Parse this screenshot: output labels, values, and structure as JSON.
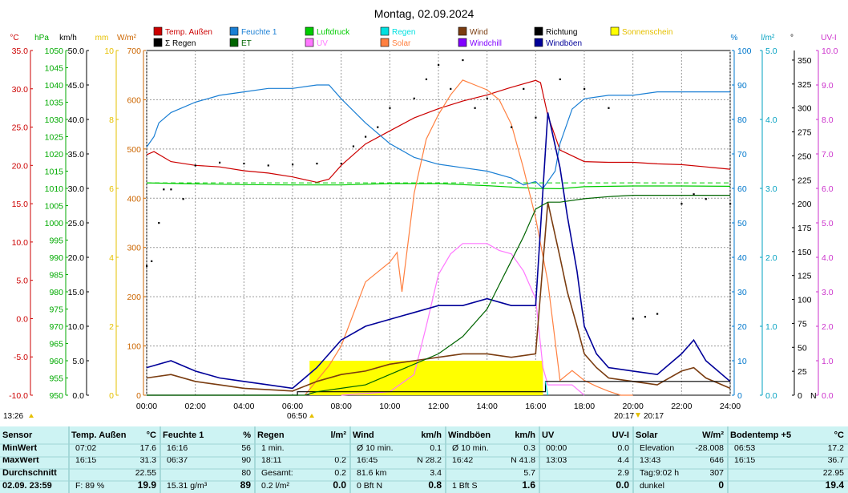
{
  "title": "Montag, 02.09.2024",
  "chart_data": {
    "type": "line",
    "title": "Montag, 02.09.2024",
    "x_ticks": [
      "00:00",
      "02:00",
      "04:00",
      "06:00",
      "08:00",
      "10:00",
      "12:00",
      "14:00",
      "16:00",
      "18:00",
      "20:00",
      "22:00",
      "24:00"
    ],
    "xlim_hours": [
      0,
      24
    ],
    "axes": [
      {
        "unit": "°C",
        "color": "#cc0000",
        "min": -10,
        "max": 35,
        "step": 5,
        "decimals": 1
      },
      {
        "unit": "hPa",
        "color": "#00aa00",
        "min": 950,
        "max": 1050,
        "step": 5,
        "decimals": 0
      },
      {
        "unit": "km/h",
        "color": "#000000",
        "min": 0,
        "max": 50,
        "step": 5,
        "decimals": 1
      },
      {
        "unit": "mm",
        "color": "#e6c000",
        "min": 0,
        "max": 10,
        "step": 2,
        "decimals": 0
      },
      {
        "unit": "W/m²",
        "color": "#cc6600",
        "min": 0,
        "max": 700,
        "step": 100,
        "decimals": 0
      },
      {
        "unit": "%",
        "color": "#0077cc",
        "min": 0,
        "max": 100,
        "step": 10,
        "decimals": 0
      },
      {
        "unit": "l/m²",
        "color": "#00a0c0",
        "min": 0,
        "max": 5,
        "step": 1,
        "decimals": 1
      },
      {
        "unit": "°",
        "color": "#000000",
        "min": 0,
        "max": 360,
        "step": 25,
        "decimals": 0
      },
      {
        "unit": "UV-I",
        "color": "#cc33cc",
        "min": 0,
        "max": 10,
        "step": 1,
        "decimals": 1
      }
    ],
    "legend": [
      {
        "label": "Temp. Außen",
        "color": "#cc0000"
      },
      {
        "label": "Feuchte 1",
        "color": "#1a7fd4"
      },
      {
        "label": "Luftdruck",
        "color": "#00cc00"
      },
      {
        "label": "Regen",
        "color": "#00e0e0"
      },
      {
        "label": "Wind",
        "color": "#7a3c10"
      },
      {
        "label": "Richtung",
        "color": "#000000"
      },
      {
        "label": "Sonnenschein",
        "color": "#ffff00"
      },
      {
        "label": "Σ Regen",
        "color": "#000000"
      },
      {
        "label": "ET",
        "color": "#006400"
      },
      {
        "label": "UV",
        "color": "#ff77ff"
      },
      {
        "label": "Solar",
        "color": "#ff8040"
      },
      {
        "label": "Windchill",
        "color": "#8000ff"
      },
      {
        "label": "Windböen",
        "color": "#000099"
      }
    ],
    "series": [
      {
        "name": "Temp. Außen",
        "axis": "°C",
        "x": [
          0,
          0.3,
          1,
          2,
          3,
          4,
          5,
          6,
          7,
          7.5,
          8,
          9,
          10,
          11,
          12,
          13,
          14,
          15,
          16,
          16.2,
          16.5,
          17,
          18,
          19,
          20,
          21,
          22,
          23,
          24
        ],
        "values": [
          21.4,
          21.8,
          20.5,
          20,
          19.8,
          19.3,
          19,
          18.5,
          17.8,
          18.2,
          20,
          22.8,
          24.5,
          26.2,
          27.4,
          28.4,
          29.2,
          30.2,
          31.1,
          30.8,
          26.5,
          22,
          20.5,
          20.4,
          20.4,
          20.2,
          20.1,
          19.8,
          19.5
        ]
      },
      {
        "name": "Feuchte 1",
        "axis": "%",
        "x": [
          0,
          0.3,
          0.5,
          1,
          2,
          3,
          4,
          5,
          6,
          7,
          7.5,
          8,
          9,
          10,
          11,
          12,
          13,
          14,
          15,
          15.5,
          16,
          16.3,
          16.8,
          17,
          17.5,
          18,
          19,
          20,
          21,
          22,
          23,
          24
        ],
        "values": [
          72,
          75,
          79,
          82,
          85,
          87,
          88,
          89,
          89,
          90,
          90,
          86,
          79,
          73,
          69,
          67,
          66,
          65,
          63,
          61,
          62,
          60,
          65,
          73,
          83,
          86,
          87,
          87,
          88,
          88,
          88,
          88
        ]
      },
      {
        "name": "Luftdruck",
        "axis": "hPa",
        "x": [
          0,
          2,
          4,
          6,
          8,
          10,
          12,
          14,
          16,
          17,
          18,
          20,
          22,
          24
        ],
        "values": [
          1011.6,
          1011.3,
          1011.1,
          1011.0,
          1011.0,
          1011.4,
          1011.4,
          1010.8,
          1010.0,
          1009.9,
          1010.5,
          1010.7,
          1010.7,
          1010.6
        ]
      },
      {
        "name": "Solar",
        "axis": "W/m²",
        "x": [
          6.5,
          7,
          7.5,
          8,
          9,
          10,
          10.3,
          10.5,
          11,
          11.5,
          12,
          12.5,
          13,
          13.5,
          14,
          14.5,
          15,
          15.5,
          16,
          16.5,
          17,
          17.5,
          18,
          18.5,
          19,
          19.5,
          20
        ],
        "values": [
          0,
          30,
          60,
          100,
          230,
          270,
          290,
          210,
          410,
          520,
          570,
          610,
          640,
          630,
          620,
          600,
          550,
          460,
          360,
          230,
          30,
          50,
          30,
          18,
          8,
          0,
          0
        ]
      },
      {
        "name": "UV",
        "axis": "UV-I",
        "x": [
          8,
          10,
          11,
          11.5,
          12,
          12.5,
          13,
          13.5,
          14,
          14.5,
          15,
          15.5,
          16,
          16.3,
          16.5,
          17,
          17.5,
          18
        ],
        "values": [
          0,
          0.1,
          0.6,
          2,
          3.5,
          4.1,
          4.4,
          4.4,
          4.4,
          4.2,
          4.1,
          3.6,
          2.8,
          0.8,
          0.3,
          0.3,
          0.3,
          0
        ]
      },
      {
        "name": "Wind",
        "axis": "km/h",
        "x": [
          0,
          1,
          2,
          3,
          4,
          5,
          6,
          7,
          8,
          9,
          10,
          11,
          12,
          13,
          14,
          15,
          16,
          16.5,
          17,
          17.3,
          17.7,
          18,
          18.5,
          19,
          20,
          21,
          22,
          22.5,
          23,
          24
        ],
        "values": [
          2.5,
          3,
          2,
          1.5,
          1,
          0.8,
          0.6,
          2,
          3,
          3.5,
          4.5,
          5,
          5.5,
          6,
          6,
          5.5,
          6,
          28,
          20,
          15,
          10,
          6,
          4,
          2.5,
          2,
          1.5,
          3.5,
          4,
          2.5,
          1
        ]
      },
      {
        "name": "Windböen",
        "axis": "km/h",
        "x": [
          0,
          1,
          2,
          3,
          4,
          5,
          6,
          7,
          8,
          9,
          10,
          11,
          12,
          13,
          14,
          15,
          16,
          16.5,
          17,
          17.3,
          17.7,
          18,
          18.5,
          19,
          20,
          21,
          22,
          22.5,
          23,
          24
        ],
        "values": [
          4,
          5,
          3.5,
          2.5,
          2,
          1.5,
          1,
          4,
          8,
          10,
          11,
          12,
          13,
          13,
          14,
          13,
          13,
          41,
          33,
          26,
          18,
          10,
          6,
          4,
          3.5,
          3,
          6,
          8,
          5,
          2
        ]
      },
      {
        "name": "Σ Regen",
        "axis": "l/m²",
        "x": [
          0,
          6.2,
          6.2,
          16.4,
          16.4,
          24
        ],
        "values": [
          0,
          0,
          0.05,
          0.05,
          0.2,
          0.2
        ]
      },
      {
        "name": "ET",
        "axis": "l/m²",
        "x": [
          0,
          6.5,
          7,
          8,
          9,
          10,
          11,
          12,
          13,
          14,
          14.5,
          15,
          15.5,
          16,
          16.5,
          17,
          18,
          19,
          20,
          21,
          22,
          23,
          24
        ],
        "values": [
          0,
          0,
          0.05,
          0.1,
          0.15,
          0.3,
          0.45,
          0.6,
          0.85,
          1.25,
          1.6,
          1.95,
          2.3,
          2.7,
          2.8,
          2.8,
          2.85,
          2.88,
          2.9,
          2.9,
          2.9,
          2.9,
          2.9
        ]
      },
      {
        "name": "Regen",
        "axis": "l/m²",
        "x": [
          16.4,
          16.5
        ],
        "values": [
          0.2,
          0
        ]
      },
      {
        "name": "Richtung",
        "axis": "°",
        "type": "scatter",
        "x": [
          0,
          0.2,
          0.5,
          0.7,
          1,
          1.5,
          2,
          3,
          4,
          5,
          6,
          7,
          8,
          8.5,
          9,
          9.5,
          10,
          11,
          11.5,
          12,
          12.5,
          13,
          13.5,
          14,
          15,
          15.5,
          16,
          17,
          18,
          19,
          20,
          20.5,
          21,
          22,
          22.5,
          23,
          24
        ],
        "values": [
          135,
          140,
          180,
          215,
          215,
          205,
          240,
          243,
          242,
          240,
          241,
          242,
          242,
          260,
          270,
          280,
          300,
          310,
          330,
          345,
          320,
          350,
          300,
          310,
          280,
          320,
          290,
          330,
          320,
          300,
          80,
          82,
          85,
          200,
          210,
          205,
          200
        ]
      }
    ]
  },
  "statusbar": {
    "left_time": "13:26",
    "sunrise": "06:50",
    "sunset_a": "20:17",
    "sunset_b": "20:17"
  },
  "stats": {
    "columns": [
      {
        "header": [
          "Sensor"
        ],
        "rows": [
          [
            "MinWert"
          ],
          [
            "MaxWert"
          ],
          [
            "Durchschnitt"
          ],
          [
            "02.09.  23:59"
          ]
        ]
      },
      {
        "header": [
          "Temp. Außen",
          "°C"
        ],
        "rows": [
          [
            "07:02",
            "17.6"
          ],
          [
            "16:15",
            "31.3"
          ],
          [
            "",
            "22.55"
          ],
          [
            "F: 89 %",
            "19.9"
          ]
        ]
      },
      {
        "header": [
          "Feuchte 1",
          "%"
        ],
        "rows": [
          [
            "16:16",
            "56"
          ],
          [
            "06:37",
            "90"
          ],
          [
            "",
            "80"
          ],
          [
            "15.31 g/m³",
            "89"
          ]
        ]
      },
      {
        "header": [
          "Regen",
          "l/m²"
        ],
        "rows": [
          [
            "1 min.",
            ""
          ],
          [
            "18:11",
            "0.2"
          ],
          [
            "Gesamt:",
            "0.2"
          ],
          [
            "0.2 l/m²",
            "0.0"
          ]
        ]
      },
      {
        "header": [
          "Wind",
          "km/h"
        ],
        "rows": [
          [
            "Ø 10 min.",
            "0.1"
          ],
          [
            "16:45",
            "N 28.2"
          ],
          [
            "81.6 km",
            "3.4"
          ],
          [
            "0 Bft N",
            "0.8"
          ]
        ]
      },
      {
        "header": [
          "Windböen",
          "km/h"
        ],
        "rows": [
          [
            "Ø 10 min.",
            "0.3"
          ],
          [
            "16:42",
            "N 41.8"
          ],
          [
            "",
            "5.7"
          ],
          [
            "1 Bft S",
            "1.6"
          ]
        ]
      },
      {
        "header": [
          "UV",
          "UV-I"
        ],
        "rows": [
          [
            "00:00",
            "0.0"
          ],
          [
            "13:03",
            "4.4"
          ],
          [
            "",
            "2.9"
          ],
          [
            "",
            "0.0"
          ]
        ]
      },
      {
        "header": [
          "Solar",
          "W/m²"
        ],
        "rows": [
          [
            "Elevation",
            "-28.008"
          ],
          [
            "13:43",
            "646"
          ],
          [
            "Tag:9:02 h",
            "307"
          ],
          [
            "dunkel",
            "0"
          ]
        ]
      },
      {
        "header": [
          "Bodentemp +5",
          "°C"
        ],
        "rows": [
          [
            "06:53",
            "17.2"
          ],
          [
            "16:15",
            "36.7"
          ],
          [
            "",
            "22.95"
          ],
          [
            "",
            "19.4"
          ]
        ]
      }
    ]
  }
}
